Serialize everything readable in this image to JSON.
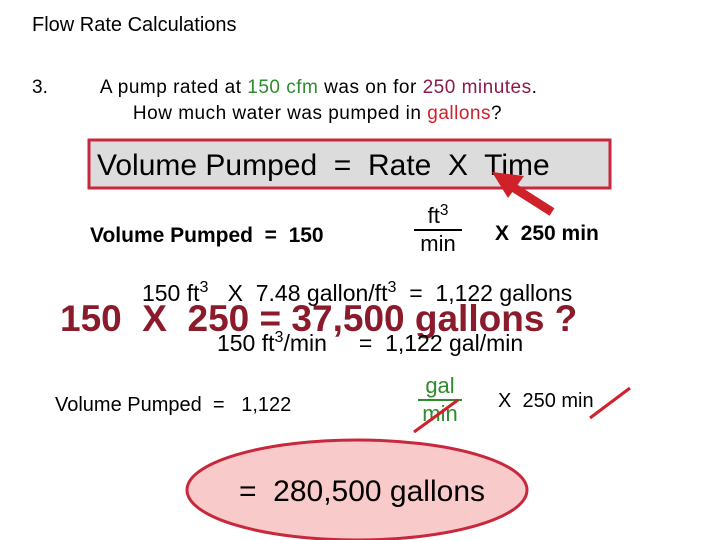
{
  "header": {
    "title": "Flow Rate Calculations"
  },
  "problem": {
    "number": "3.",
    "line1": [
      "A pump rated at ",
      "150 cfm",
      " was on for ",
      "250 minutes",
      "."
    ],
    "line2": [
      "How much water was pumped in ",
      "gallons",
      "?"
    ]
  },
  "formula": "Volume Pumped  =  Rate  X  Time",
  "step1": {
    "lhs": "Volume Pumped  =  150",
    "numerator": "ft",
    "numerator_sup": "3",
    "denominator": "min",
    "rhs": "X  250 min"
  },
  "step2": [
    "150 ft",
    "3",
    "   X  7.48 gallon/ft",
    "3",
    "  =  1,122 gallons"
  ],
  "overlay": "150  X  250 = 37,500 gallons ?",
  "step3": [
    "150 ft",
    "3",
    "/min     =  1,122 gal/min"
  ],
  "step4": {
    "lhs": "Volume Pumped  =   1,122",
    "numerator": "gal",
    "denominator": "min",
    "rhs_prefix": "X  250 ",
    "rhs_unit": "min"
  },
  "result": "=  280,500 gallons"
}
